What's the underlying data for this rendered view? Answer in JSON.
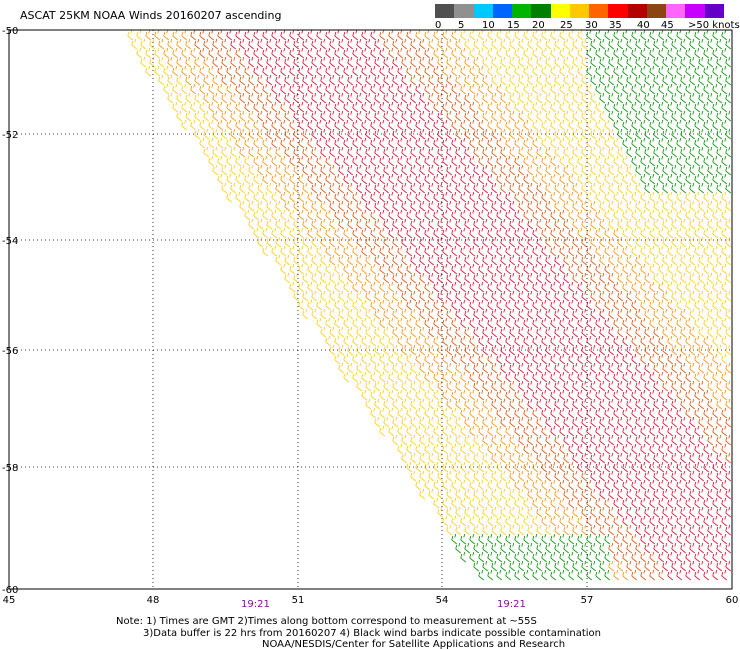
{
  "title": "ASCAT 25KM NOAA Winds 20160207 ascending",
  "legend": {
    "colors": [
      "#505050",
      "#909090",
      "#00c8ff",
      "#0064ff",
      "#00b400",
      "#008000",
      "#ffff00",
      "#ffc800",
      "#ff6400",
      "#ff0000",
      "#b40000",
      "#8b4513",
      "#ff64ff",
      "#c800ff",
      "#6400c8"
    ],
    "labels": [
      "0",
      "5",
      "10",
      "15",
      "20",
      "25",
      "30",
      "35",
      "40",
      "45",
      ">50 knots"
    ]
  },
  "map": {
    "x_ticks": [
      "45",
      "48",
      "51",
      "54",
      "57",
      "60"
    ],
    "y_ticks": [
      "-50",
      "-52",
      "-54",
      "-56",
      "-58",
      "-60"
    ],
    "pass_times": [
      "19:21",
      "19:21"
    ]
  },
  "notes": {
    "line1": "Note: 1) Times are GMT 2)Times along bottom correspond to measurement at ~55S",
    "line2": "3)Data buffer is 22 hrs from 20160207 4) Black wind barbs indicate possible contamination",
    "line3": "NOAA/NESDIS/Center for Satellite Applications and Research"
  }
}
